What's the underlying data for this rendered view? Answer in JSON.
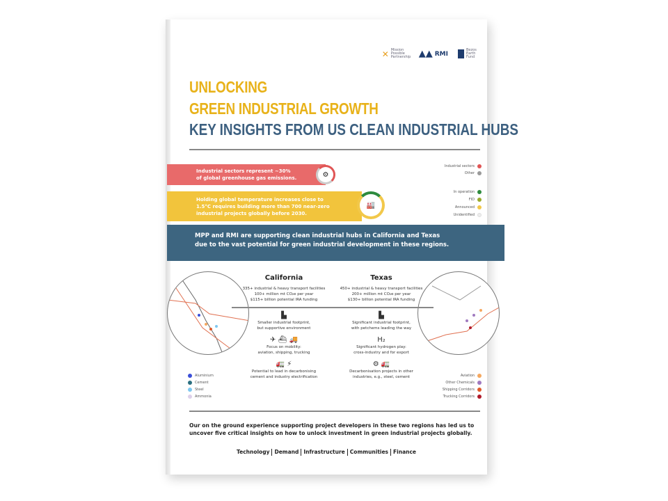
{
  "logos": [
    "Mission Possible Partnership",
    "RMI",
    "Bezos Earth Fund"
  ],
  "title": {
    "line1": "UNLOCKING",
    "line2": "GREEN INDUSTRIAL GROWTH",
    "line3": "KEY INSIGHTS FROM US CLEAN INDUSTRIAL HUBS"
  },
  "stat1": {
    "line1": "Industrial sectors represent ~30%",
    "line2": "of global greenhouse gas emissions."
  },
  "stat2": {
    "line1": "Holding global temperature increases close to",
    "line2": "1.5°C requires building more than 700 near-zero",
    "line3": "industrial projects globally before 2030."
  },
  "legend_top": [
    {
      "label": "Industrial sectors",
      "color": "#e05555"
    },
    {
      "label": "Other",
      "color": "#9a9a9a"
    }
  ],
  "legend_status": [
    {
      "label": "In operation",
      "color": "#2e8b3e"
    },
    {
      "label": "FID",
      "color": "#9aab2e"
    },
    {
      "label": "Announced",
      "color": "#f2c84a"
    },
    {
      "label": "Unidentified",
      "color": "#eeeeee"
    }
  ],
  "banner": {
    "line1": "MPP and RMI are supporting clean industrial hubs in California and Texas",
    "line2": "due to the vast potential for green industrial development in these regions."
  },
  "california": {
    "title": "California",
    "stats": [
      "335+ industrial & heavy transport facilities",
      "100+ million mt CO₂e per year",
      "$115+ billion potential IRA funding"
    ],
    "f1": [
      "Smaller industrial footprint,",
      "but supportive environment"
    ],
    "f2": [
      "Focus on mobility:",
      "aviation, shipping, trucking"
    ],
    "f3": [
      "Potential to lead in decarbonising",
      "cement and industry electrification"
    ]
  },
  "texas": {
    "title": "Texas",
    "stats": [
      "450+ industrial & heavy transport facilities",
      "200+ million mt CO₂e per year",
      "$130+ billion potential IRA funding"
    ],
    "f1": [
      "Significant industrial footprint,",
      "with petchems leading the way"
    ],
    "f2": [
      "Significant hydrogen play:",
      "cross-industry and for export"
    ],
    "f3": [
      "Decarbonisation projects in other",
      "industries, e.g., steel, cement"
    ]
  },
  "legend_left": [
    {
      "label": "Aluminium",
      "color": "#3b4fd8"
    },
    {
      "label": "Cement",
      "color": "#2a6f80"
    },
    {
      "label": "Steel",
      "color": "#7fc8f0"
    },
    {
      "label": "Ammonia",
      "color": "#ddd0ea"
    }
  ],
  "legend_right": [
    {
      "label": "Aviation",
      "color": "#f5a860"
    },
    {
      "label": "Other Chemicals",
      "color": "#a07ac0"
    },
    {
      "label": "Shipping Corridors",
      "color": "#e05a2a"
    },
    {
      "label": "Trucking Corridors",
      "color": "#b01a2a"
    }
  ],
  "closing": {
    "line1": "Our on the ground experience supporting project developers in these two regions has led us to",
    "line2": "uncover five critical insights on how to unlock investment in green industrial projects globally."
  },
  "insights": [
    "Technology",
    "Demand",
    "Infrastructure",
    "Communities",
    "Finance"
  ]
}
